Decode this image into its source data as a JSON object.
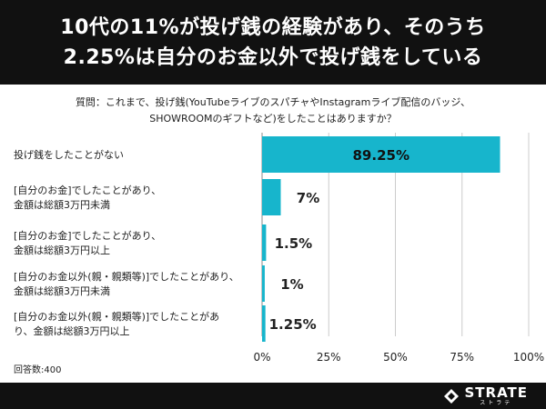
{
  "header": {
    "line1": "10代の11%が投げ銭の経験があり、そのうち",
    "line2": "2.25%は自分のお金以外で投げ銭をしている"
  },
  "question": {
    "line1": "質問：これまで、投げ銭(YouTubeライブのスパチャやInstagramライブ配信のバッジ、",
    "line2": "SHOWROOMのギフトなど)をしたことはありますか？"
  },
  "sample_size": "回答数:400",
  "logo": {
    "word": "STRATE",
    "sub": "ストラテ"
  },
  "colors": {
    "bar": "#17b5cc",
    "header_bg": "#111111",
    "grid": "#cccccc"
  },
  "chart_data": {
    "type": "bar",
    "orientation": "horizontal",
    "categories": [
      [
        "投げ銭をしたことがない"
      ],
      [
        "[自分のお金]でしたことがあり、",
        "金額は総額3万円未満"
      ],
      [
        "[自分のお金]でしたことがあり、",
        "金額は総額3万円以上"
      ],
      [
        "[自分のお金以外(親・親類等)]でしたことがあり、",
        "金額は総額3万円未満"
      ],
      [
        "[自分のお金以外(親・親類等)]でしたことがあ",
        "り、金額は総額3万円以上"
      ]
    ],
    "values": [
      89.25,
      7,
      1.5,
      1,
      1.25
    ],
    "value_labels": [
      "89.25%",
      "7%",
      "1.5%",
      "1%",
      "1.25%"
    ],
    "xlim": [
      0,
      100
    ],
    "xticks": [
      "0%",
      "25%",
      "50%",
      "75%",
      "100%"
    ],
    "grid": true
  }
}
